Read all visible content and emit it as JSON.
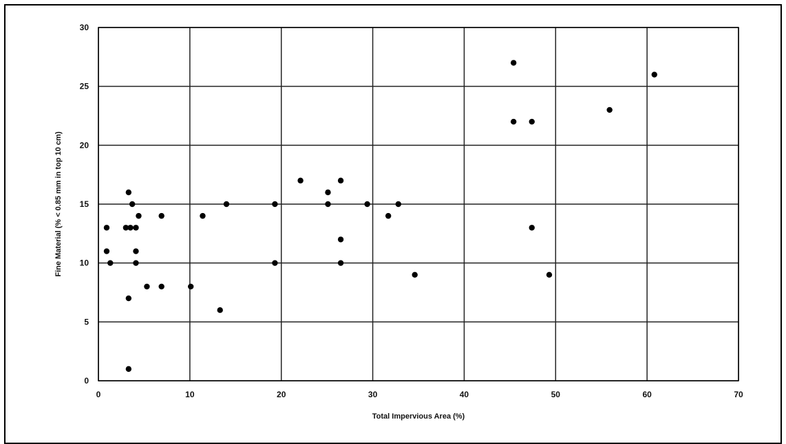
{
  "chart_data": {
    "type": "scatter",
    "title": "",
    "xlabel": "Total Impervious Area (%)",
    "ylabel": "Fine Material (% < 0.85 mm in top 10 cm)",
    "xlim": [
      0,
      70
    ],
    "ylim": [
      0,
      30
    ],
    "x_ticks": [
      0,
      10,
      20,
      30,
      40,
      50,
      60,
      70
    ],
    "y_ticks": [
      0,
      5,
      10,
      15,
      20,
      25,
      30
    ],
    "grid": true,
    "marker_color": "#000000",
    "points": [
      {
        "x": 0.9,
        "y": 13
      },
      {
        "x": 0.9,
        "y": 11
      },
      {
        "x": 1.3,
        "y": 10
      },
      {
        "x": 3.0,
        "y": 13
      },
      {
        "x": 3.5,
        "y": 13
      },
      {
        "x": 3.3,
        "y": 16
      },
      {
        "x": 3.7,
        "y": 15
      },
      {
        "x": 4.1,
        "y": 13
      },
      {
        "x": 4.4,
        "y": 14
      },
      {
        "x": 4.1,
        "y": 11
      },
      {
        "x": 4.1,
        "y": 10
      },
      {
        "x": 3.3,
        "y": 7
      },
      {
        "x": 3.3,
        "y": 1
      },
      {
        "x": 5.3,
        "y": 8
      },
      {
        "x": 6.9,
        "y": 14
      },
      {
        "x": 6.9,
        "y": 8
      },
      {
        "x": 10.1,
        "y": 8
      },
      {
        "x": 11.4,
        "y": 14
      },
      {
        "x": 13.3,
        "y": 6
      },
      {
        "x": 14.0,
        "y": 15
      },
      {
        "x": 19.3,
        "y": 15
      },
      {
        "x": 19.3,
        "y": 10
      },
      {
        "x": 22.1,
        "y": 17
      },
      {
        "x": 25.1,
        "y": 16
      },
      {
        "x": 25.1,
        "y": 15
      },
      {
        "x": 26.5,
        "y": 17
      },
      {
        "x": 26.5,
        "y": 12
      },
      {
        "x": 26.5,
        "y": 10
      },
      {
        "x": 29.4,
        "y": 15
      },
      {
        "x": 31.7,
        "y": 14
      },
      {
        "x": 32.8,
        "y": 15
      },
      {
        "x": 34.6,
        "y": 9
      },
      {
        "x": 45.4,
        "y": 27
      },
      {
        "x": 45.4,
        "y": 22
      },
      {
        "x": 47.4,
        "y": 22
      },
      {
        "x": 47.4,
        "y": 13
      },
      {
        "x": 49.3,
        "y": 9
      },
      {
        "x": 55.9,
        "y": 23
      },
      {
        "x": 60.8,
        "y": 26
      }
    ]
  }
}
